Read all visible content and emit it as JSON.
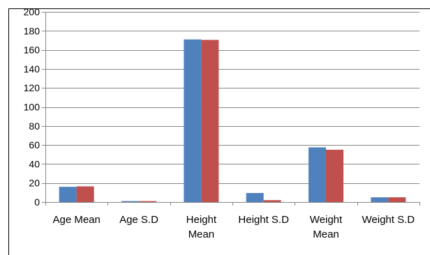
{
  "chart_data": {
    "type": "bar",
    "categories": [
      [
        "Age Mean"
      ],
      [
        "Age S.D"
      ],
      [
        "Height",
        "Mean"
      ],
      [
        "Height S.D"
      ],
      [
        "Weight",
        "Mean"
      ],
      [
        "Weight S.D"
      ]
    ],
    "series": [
      {
        "color": "#4F81BD",
        "values": [
          16,
          1,
          171,
          9.5,
          57.5,
          5
        ]
      },
      {
        "color": "#C0504D",
        "values": [
          16.5,
          1,
          170.5,
          2,
          55,
          5
        ]
      }
    ],
    "ylim": [
      0,
      200
    ],
    "yticks": [
      0,
      20,
      40,
      60,
      80,
      100,
      120,
      140,
      160,
      180,
      200
    ],
    "grid": true,
    "title": "",
    "xlabel": "",
    "ylabel": ""
  }
}
